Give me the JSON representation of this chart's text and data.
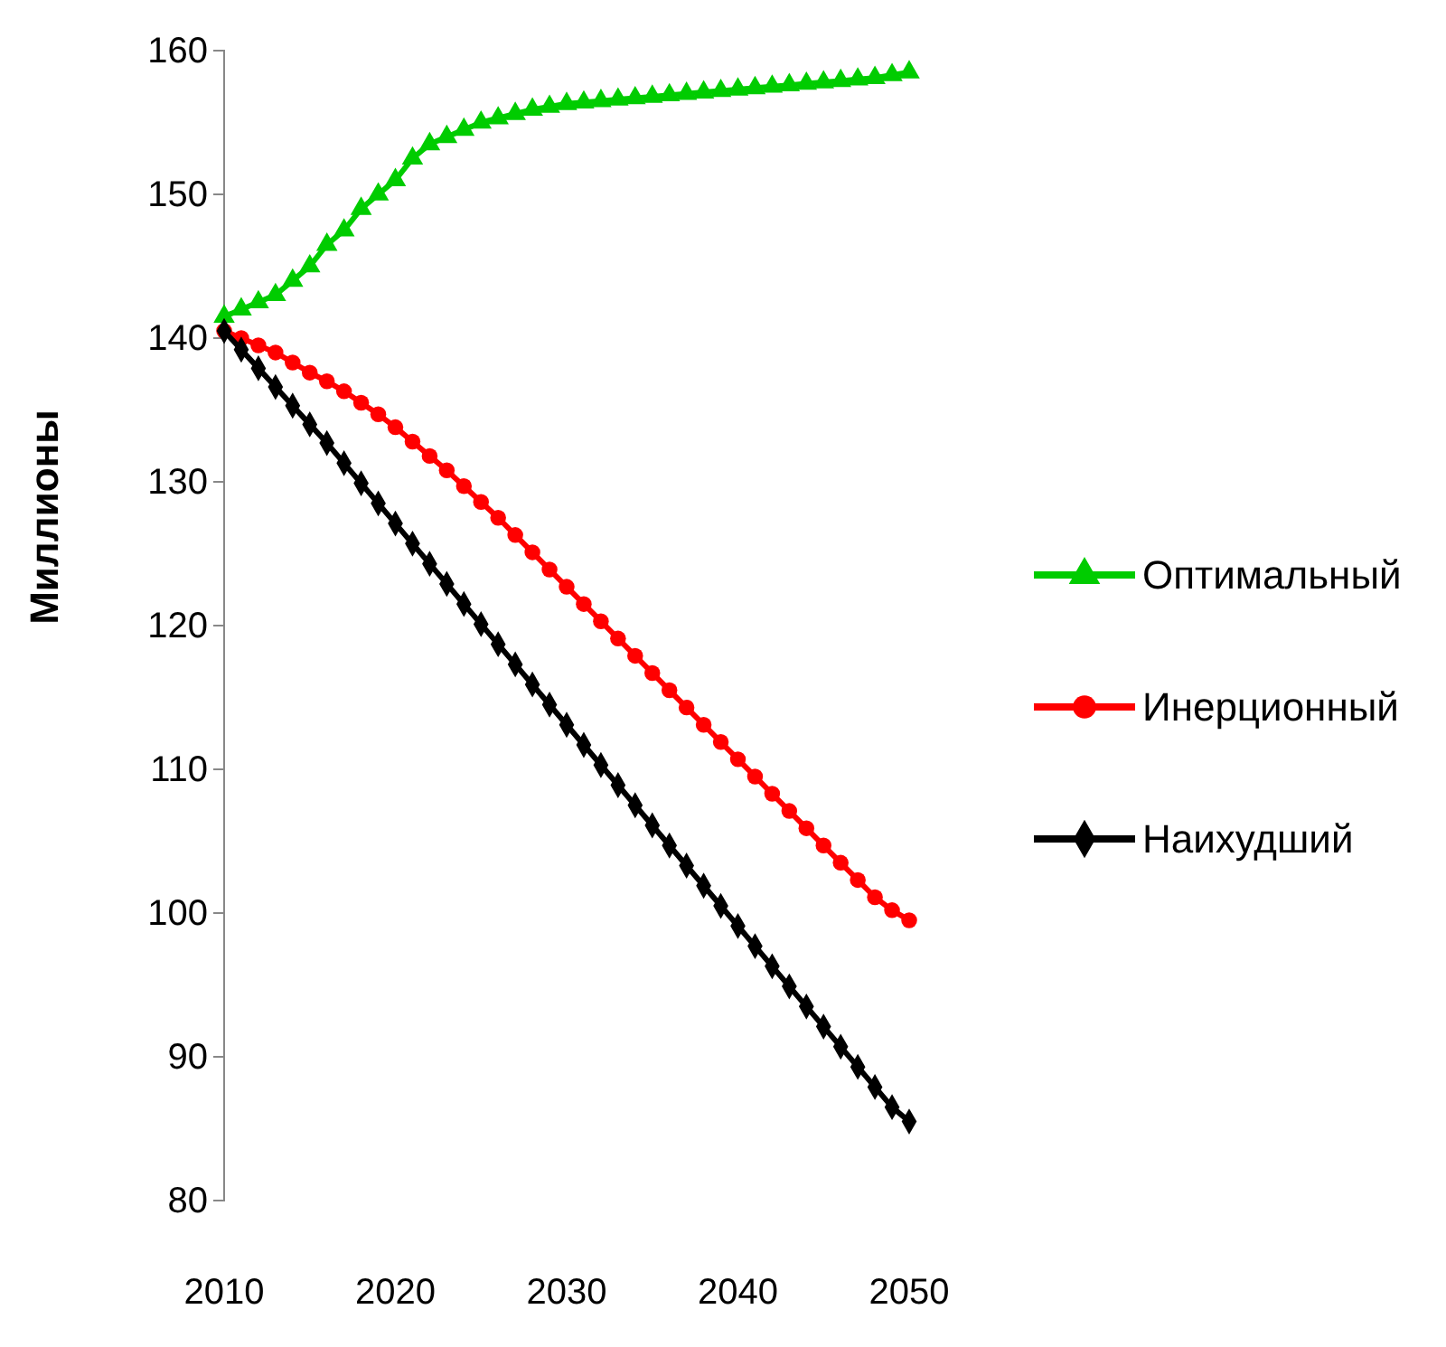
{
  "chart_data": {
    "type": "line",
    "ylabel": "Миллионы",
    "x": [
      2010,
      2011,
      2012,
      2013,
      2014,
      2015,
      2016,
      2017,
      2018,
      2019,
      2020,
      2021,
      2022,
      2023,
      2024,
      2025,
      2026,
      2027,
      2028,
      2029,
      2030,
      2031,
      2032,
      2033,
      2034,
      2035,
      2036,
      2037,
      2038,
      2039,
      2040,
      2041,
      2042,
      2043,
      2044,
      2045,
      2046,
      2047,
      2048,
      2049,
      2050
    ],
    "xlim": [
      2010,
      2050
    ],
    "xticks": [
      2010,
      2020,
      2030,
      2040,
      2050
    ],
    "ylim": [
      80,
      160
    ],
    "yticks": [
      80,
      90,
      100,
      110,
      120,
      130,
      140,
      150,
      160
    ],
    "grid": false,
    "legend": "right",
    "series": [
      {
        "name": "Оптимальный",
        "color": "#00cc00",
        "marker": "triangle",
        "values": [
          141.5,
          142,
          142.5,
          143,
          144,
          145,
          146.5,
          147.5,
          149,
          150,
          151,
          152.5,
          153.5,
          154,
          154.5,
          155,
          155.3,
          155.6,
          155.9,
          156.1,
          156.3,
          156.4,
          156.5,
          156.6,
          156.7,
          156.8,
          156.9,
          157,
          157.1,
          157.2,
          157.3,
          157.4,
          157.5,
          157.6,
          157.7,
          157.8,
          157.9,
          158,
          158.1,
          158.3,
          158.5
        ]
      },
      {
        "name": "Инерционный",
        "color": "#ff0000",
        "marker": "circle",
        "values": [
          140.5,
          140,
          139.5,
          139,
          138.3,
          137.6,
          137,
          136.3,
          135.5,
          134.7,
          133.8,
          132.8,
          131.8,
          130.8,
          129.7,
          128.6,
          127.5,
          126.3,
          125.1,
          123.9,
          122.7,
          121.5,
          120.3,
          119.1,
          117.9,
          116.7,
          115.5,
          114.3,
          113.1,
          111.9,
          110.7,
          109.5,
          108.3,
          107.1,
          105.9,
          104.7,
          103.5,
          102.3,
          101.1,
          100.2,
          99.5
        ]
      },
      {
        "name": "Наихудший",
        "color": "#000000",
        "marker": "diamond",
        "values": [
          140.5,
          139.2,
          137.9,
          136.6,
          135.3,
          134,
          132.7,
          131.3,
          129.9,
          128.5,
          127.1,
          125.7,
          124.3,
          122.9,
          121.5,
          120.1,
          118.7,
          117.3,
          115.9,
          114.5,
          113.1,
          111.7,
          110.3,
          108.9,
          107.5,
          106.1,
          104.7,
          103.3,
          101.9,
          100.5,
          99.1,
          97.7,
          96.3,
          94.9,
          93.5,
          92.1,
          90.7,
          89.3,
          87.9,
          86.5,
          85.5
        ]
      }
    ]
  }
}
